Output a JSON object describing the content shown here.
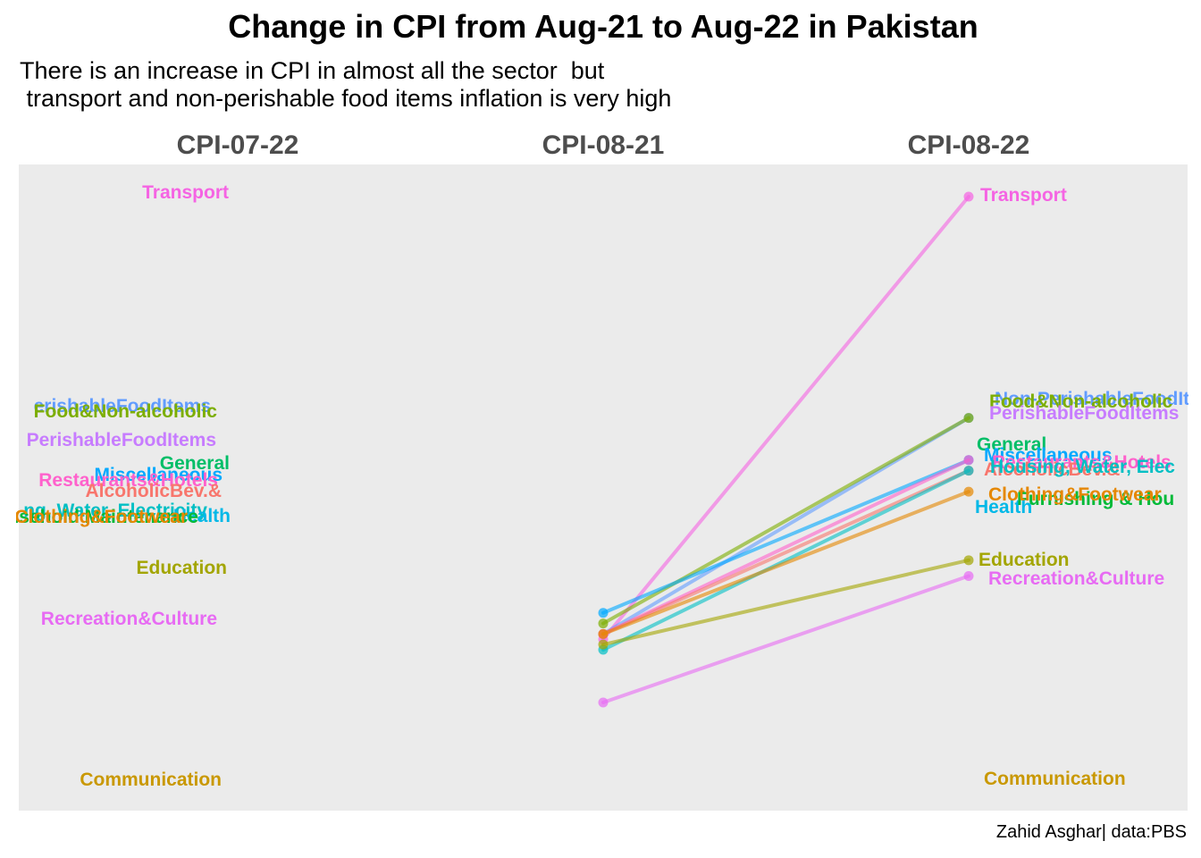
{
  "chart_data": {
    "type": "line",
    "title": "Change in CPI from Aug-21 to Aug-22 in Pakistan",
    "subtitle": "There is an increase in CPI in almost all the sector  but\n transport and non-perishable food items inflation is very high",
    "caption": "Zahid Asghar| data:PBS",
    "columns": [
      "CPI-07-22",
      "CPI-08-21",
      "CPI-08-22"
    ],
    "grid": false,
    "legend": "none",
    "panel_color": "#EBEBEB",
    "series": [
      {
        "name": "Transport",
        "color": "#F564E3",
        "left_label": "Transport",
        "right_label": "Transport",
        "values": [
          null,
          148,
          232
        ]
      },
      {
        "name": "Non-PerishableFoodItems",
        "color": "#619CFF",
        "left_label": "erishableFoodItems",
        "right_label": "Non-PerishableFoodItems",
        "values": [
          null,
          149,
          190
        ]
      },
      {
        "name": "Food&Non-alcoholic",
        "color": "#7CAE00",
        "left_label": "Food&Non-alcoholic",
        "right_label": "Food&Non-alcoholic",
        "values": [
          null,
          151,
          190
        ]
      },
      {
        "name": "PerishableFoodItems",
        "color": "#C77CFF",
        "left_label": "PerishableFoodItems",
        "right_label": "PerishableFoodItems",
        "values": [
          null,
          null,
          null
        ]
      },
      {
        "name": "General",
        "color": "#00BE67",
        "left_label": "General",
        "right_label": "General",
        "values": [
          null,
          null,
          null
        ]
      },
      {
        "name": "Miscellaneous",
        "color": "#00A9FF",
        "left_label": "Miscellaneous",
        "right_label": "Miscellaneous",
        "values": [
          null,
          153,
          182
        ]
      },
      {
        "name": "Restaurants&Hotels",
        "color": "#FF61CC",
        "left_label": "Restaurants&Hotels",
        "right_label": "Restaurants&Hotels",
        "values": [
          null,
          149,
          182
        ]
      },
      {
        "name": "AlcoholicBev.&",
        "color": "#F8766D",
        "left_label": "AlcoholicBev.&",
        "right_label": "AlcoholicBev.&",
        "values": [
          null,
          149,
          180
        ]
      },
      {
        "name": "Housing, Water, Electricity",
        "color": "#00BFC4",
        "left_label": "ng, Water, Electricity",
        "right_label": "Housing, Water, Elec",
        "values": [
          null,
          146,
          180
        ]
      },
      {
        "name": "Health",
        "color": "#00B8E7",
        "left_label": "Health",
        "right_label": "Health",
        "values": [
          null,
          null,
          null
        ]
      },
      {
        "name": "Furnishing & Household Maintenance",
        "color": "#00BA38",
        "left_label": "Furnishing & Household Maintenance",
        "right_label": "Furnishing & Hou",
        "values": [
          null,
          null,
          null
        ]
      },
      {
        "name": "Clothing&Footwear",
        "color": "#E58700",
        "left_label": "Clothing&Footwear",
        "right_label": "Clothing&Footwear",
        "values": [
          null,
          149,
          176
        ]
      },
      {
        "name": "Education",
        "color": "#A3A500",
        "left_label": "Education",
        "right_label": "Education",
        "values": [
          null,
          147,
          163
        ]
      },
      {
        "name": "Recreation&Culture",
        "color": "#E76BF3",
        "left_label": "Recreation&Culture",
        "right_label": "Recreation&Culture",
        "values": [
          null,
          136,
          160
        ]
      },
      {
        "name": "Communication",
        "color": "#C99800",
        "left_label": "Communication",
        "right_label": "Communication",
        "values": [
          null,
          null,
          null
        ]
      }
    ]
  }
}
